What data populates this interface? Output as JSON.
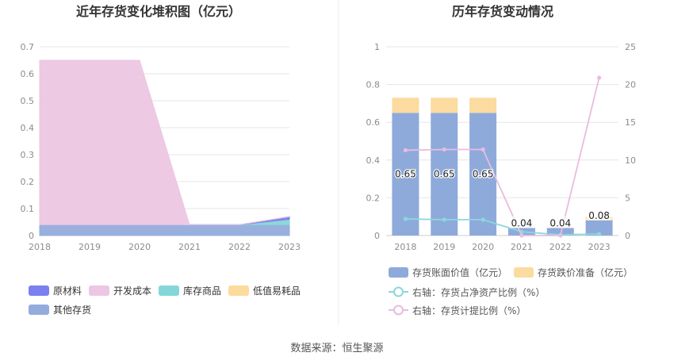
{
  "source_text": "数据来源：恒生聚源",
  "colors": {
    "raw_material": "#7b7ff0",
    "dev_cost": "#ecc6e2",
    "goods": "#85d6d8",
    "consumables": "#fddb9c",
    "other": "#93acdc",
    "bar_main": "#8eaadb",
    "bar_reserve": "#fbdb9f",
    "line_ratio": "#8ad8dc",
    "line_provision": "#e9bcdf",
    "axis_text": "#8c8c8c",
    "grid": "#e6e6e6",
    "title": "#333333"
  },
  "chart_data": [
    {
      "type": "area",
      "title": "近年存货变化堆积图（亿元）",
      "stacked": true,
      "categories": [
        "2018",
        "2019",
        "2020",
        "2021",
        "2022",
        "2023"
      ],
      "ylim": [
        0,
        0.7
      ],
      "yticks": [
        "0",
        "0.1",
        "0.2",
        "0.3",
        "0.4",
        "0.5",
        "0.6",
        "0.7"
      ],
      "grid": true,
      "legend_position": "bottom",
      "series": [
        {
          "name": "其他存货",
          "color_key": "other",
          "values": [
            0.04,
            0.04,
            0.04,
            0.04,
            0.04,
            0.04
          ]
        },
        {
          "name": "库存商品",
          "color_key": "goods",
          "values": [
            0,
            0,
            0,
            0,
            0,
            0.02
          ]
        },
        {
          "name": "低值易耗品",
          "color_key": "consumables",
          "values": [
            0,
            0,
            0,
            0,
            0,
            0
          ]
        },
        {
          "name": "原材料",
          "color_key": "raw_material",
          "values": [
            0,
            0,
            0,
            0,
            0,
            0.01
          ]
        },
        {
          "name": "开发成本",
          "color_key": "dev_cost",
          "values": [
            0.61,
            0.61,
            0.61,
            0,
            0,
            0
          ]
        }
      ],
      "legend": [
        {
          "name": "原材料",
          "color_key": "raw_material"
        },
        {
          "name": "开发成本",
          "color_key": "dev_cost"
        },
        {
          "name": "库存商品",
          "color_key": "goods"
        },
        {
          "name": "低值易耗品",
          "color_key": "consumables"
        },
        {
          "name": "其他存货",
          "color_key": "other"
        }
      ]
    },
    {
      "type": "bar",
      "title": "历年存货变动情况",
      "categories": [
        "2018",
        "2019",
        "2020",
        "2021",
        "2022",
        "2023"
      ],
      "ylim_left": [
        0,
        1
      ],
      "yticks_left": [
        "0",
        "0.2",
        "0.4",
        "0.6",
        "0.8",
        "1"
      ],
      "ylim_right": [
        0,
        25
      ],
      "yticks_right": [
        "0",
        "5",
        "10",
        "15",
        "20",
        "25"
      ],
      "grid": true,
      "legend_position": "bottom",
      "bars": [
        {
          "name": "存货账面价值（亿元）",
          "color_key": "bar_main",
          "values": [
            0.65,
            0.65,
            0.65,
            0.04,
            0.04,
            0.08
          ],
          "labels": [
            "0.65",
            "0.65",
            "0.65",
            "0.04",
            "0.04",
            "0.08"
          ]
        },
        {
          "name": "存货跌价准备（亿元）",
          "color_key": "bar_reserve",
          "values": [
            0.08,
            0.08,
            0.08,
            0,
            0,
            0.02
          ]
        }
      ],
      "lines": [
        {
          "name": "右轴：存货占净资产比例（%）",
          "color_key": "line_ratio",
          "axis": "right",
          "values": [
            2.2,
            2.1,
            2.1,
            0.5,
            0.1,
            0.2
          ]
        },
        {
          "name": "右轴：存货计提比例（%）",
          "color_key": "line_provision",
          "axis": "right",
          "values": [
            11.3,
            11.4,
            11.4,
            0,
            0,
            20.9
          ]
        }
      ]
    }
  ]
}
